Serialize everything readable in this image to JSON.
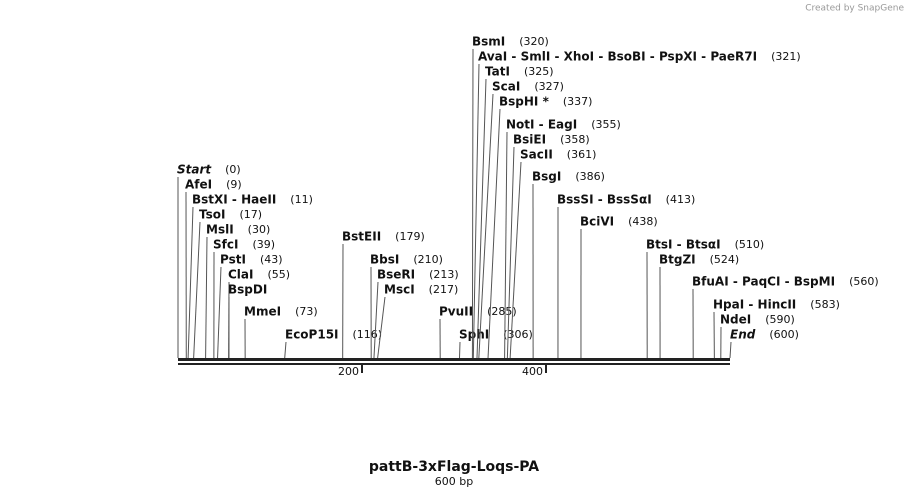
{
  "header": {
    "credit": "Created by SnapGene"
  },
  "map": {
    "title": "pattB-3xFlag-Loqs-PA",
    "subtitle": "600 bp",
    "length": 600,
    "ruler_ticks": [
      200,
      400
    ],
    "sites": [
      {
        "name": "Start",
        "position": 0,
        "position_label": "(0)"
      },
      {
        "name": "AfeI",
        "position": 9,
        "position_label": "(9)"
      },
      {
        "name": "BstXI - HaeII",
        "position": 11,
        "position_label": "(11)"
      },
      {
        "name": "TsoI",
        "position": 17,
        "position_label": "(17)"
      },
      {
        "name": "MslI",
        "position": 30,
        "position_label": "(30)"
      },
      {
        "name": "SfcI",
        "position": 39,
        "position_label": "(39)"
      },
      {
        "name": "PstI",
        "position": 43,
        "position_label": "(43)"
      },
      {
        "name": "ClaI",
        "position": 55,
        "position_label": "(55)"
      },
      {
        "name": "BspDI"
      },
      {
        "name": "MmeI",
        "position": 73,
        "position_label": "(73)"
      },
      {
        "name": "EcoP15I",
        "position": 116,
        "position_label": "(116)"
      },
      {
        "name": "BstEII",
        "position": 179,
        "position_label": "(179)"
      },
      {
        "name": "BbsI",
        "position": 210,
        "position_label": "(210)"
      },
      {
        "name": "BseRI",
        "position": 213,
        "position_label": "(213)"
      },
      {
        "name": "MscI",
        "position": 217,
        "position_label": "(217)"
      },
      {
        "name": "PvuII",
        "position": 285,
        "position_label": "(285)"
      },
      {
        "name": "SphI",
        "position": 306,
        "position_label": "(306)"
      },
      {
        "name": "BsmI",
        "position": 320,
        "position_label": "(320)"
      },
      {
        "name": "AvaI - SmlI - XhoI - BsoBI - PspXI - PaeR7I",
        "position": 321,
        "position_label": "(321)"
      },
      {
        "name": "TatI",
        "position": 325,
        "position_label": "(325)"
      },
      {
        "name": "ScaI",
        "position": 327,
        "position_label": "(327)"
      },
      {
        "name": "BspHI *",
        "position": 337,
        "position_label": "(337)"
      },
      {
        "name": "NotI - EagI",
        "position": 355,
        "position_label": "(355)"
      },
      {
        "name": "BsiEI",
        "position": 358,
        "position_label": "(358)"
      },
      {
        "name": "SacII",
        "position": 361,
        "position_label": "(361)"
      },
      {
        "name": "BsgI",
        "position": 386,
        "position_label": "(386)"
      },
      {
        "name": "BssSI - BssSαI",
        "position": 413,
        "position_label": "(413)"
      },
      {
        "name": "BciVI",
        "position": 438,
        "position_label": "(438)"
      },
      {
        "name": "BtsI - BtsαI",
        "position": 510,
        "position_label": "(510)"
      },
      {
        "name": "BtgZI",
        "position": 524,
        "position_label": "(524)"
      },
      {
        "name": "BfuAI - PaqCI - BspMI",
        "position": 560,
        "position_label": "(560)"
      },
      {
        "name": "HpaI - HincII",
        "position": 583,
        "position_label": "(583)"
      },
      {
        "name": "NdeI",
        "position": 590,
        "position_label": "(590)"
      },
      {
        "name": "End",
        "position": 600,
        "position_label": "(600)"
      }
    ]
  }
}
